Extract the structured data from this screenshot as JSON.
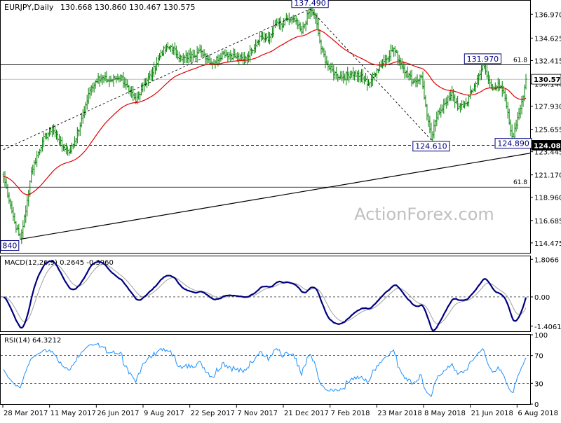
{
  "header": {
    "symbol": "EURJPY,Daily",
    "ohlc": "130.668 130.860 130.467 130.575"
  },
  "watermark": "ActionForex.com",
  "colors": {
    "bars": "#008000",
    "ma": "#e00000",
    "macd": "#000080",
    "signal": "#a0a0a0",
    "rsi": "#1e90ff",
    "level_line": "#000000",
    "label_border": "#000080",
    "label_text": "#000080",
    "pane_border": "#000000",
    "watermark": "#c0c0c0"
  },
  "chart_data": [
    {
      "type": "ohlc",
      "name": "price",
      "title": "EURJPY,Daily",
      "ylim": [
        113.5,
        138.3
      ],
      "y_ticks": [
        "136.970",
        "134.625",
        "132.415",
        "130.140",
        "127.930",
        "125.655",
        "123.445",
        "121.170",
        "118.960",
        "116.685",
        "114.475"
      ],
      "x_labels": [
        "28 Mar 2017",
        "11 May 2017",
        "26 Jun 2017",
        "9 Aug 2017",
        "22 Sep 2017",
        "7 Nov 2017",
        "21 Dec 2017",
        "7 Feb 2018",
        "23 Mar 2018",
        "8 May 2018",
        "21 Jun 2018",
        "6 Aug 2018"
      ],
      "current_price": "130.575",
      "anchors": [
        [
          0,
          121.0
        ],
        [
          5,
          118.2
        ],
        [
          8,
          116.5
        ],
        [
          12,
          114.84
        ],
        [
          16,
          117.6
        ],
        [
          20,
          121.5
        ],
        [
          28,
          124.5
        ],
        [
          35,
          125.8
        ],
        [
          42,
          124.0
        ],
        [
          48,
          123.5
        ],
        [
          55,
          126.0
        ],
        [
          62,
          129.5
        ],
        [
          68,
          130.8
        ],
        [
          76,
          130.4
        ],
        [
          84,
          130.9
        ],
        [
          90,
          129.4
        ],
        [
          95,
          128.4
        ],
        [
          100,
          130.0
        ],
        [
          107,
          131.2
        ],
        [
          113,
          133.2
        ],
        [
          120,
          133.8
        ],
        [
          128,
          132.5
        ],
        [
          135,
          133.0
        ],
        [
          142,
          133.3
        ],
        [
          150,
          132.1
        ],
        [
          158,
          133.2
        ],
        [
          166,
          132.8
        ],
        [
          172,
          132.5
        ],
        [
          178,
          133.4
        ],
        [
          184,
          134.8
        ],
        [
          190,
          134.4
        ],
        [
          196,
          136.2
        ],
        [
          200,
          135.8
        ],
        [
          204,
          136.5
        ],
        [
          209,
          136.3
        ],
        [
          214,
          135.2
        ],
        [
          220,
          137.49
        ],
        [
          224,
          136.6
        ],
        [
          228,
          133.6
        ],
        [
          233,
          131.8
        ],
        [
          239,
          131.0
        ],
        [
          244,
          130.8
        ],
        [
          250,
          131.2
        ],
        [
          256,
          130.9
        ],
        [
          262,
          130.1
        ],
        [
          268,
          131.5
        ],
        [
          274,
          132.5
        ],
        [
          280,
          133.6
        ],
        [
          284,
          132.4
        ],
        [
          289,
          131.3
        ],
        [
          294,
          130.3
        ],
        [
          300,
          130.8
        ],
        [
          304,
          127.0
        ],
        [
          307,
          124.61
        ],
        [
          312,
          127.4
        ],
        [
          318,
          128.3
        ],
        [
          322,
          129.3
        ],
        [
          326,
          127.7
        ],
        [
          332,
          128.2
        ],
        [
          338,
          129.9
        ],
        [
          344,
          131.97
        ],
        [
          348,
          130.5
        ],
        [
          351,
          129.6
        ],
        [
          355,
          130.2
        ],
        [
          360,
          128.7
        ],
        [
          364,
          125.5
        ],
        [
          366,
          124.89
        ],
        [
          369,
          126.8
        ],
        [
          372,
          128.4
        ],
        [
          375,
          130.575
        ]
      ],
      "ma_period": 55,
      "levels": [
        {
          "label": "61.8",
          "value": 132.0
        },
        {
          "label": "124.080",
          "value": 124.08
        },
        {
          "label": "61.8",
          "value": 119.96
        }
      ],
      "callouts": [
        {
          "label": "137.490",
          "index": 220,
          "value": 137.49
        },
        {
          "label": "131.970",
          "index": 344,
          "value": 131.97
        },
        {
          "label": "124.610",
          "index": 307,
          "value": 124.61
        },
        {
          "label": "124.890",
          "index": 366,
          "value": 124.89
        },
        {
          "label": "840",
          "index": 12,
          "value": 114.84
        }
      ],
      "trendlines": [
        {
          "from": [
            0,
            123.65
          ],
          "to": [
            220,
            137.49
          ]
        },
        {
          "from": [
            220,
            137.49
          ],
          "to": [
            307,
            124.61
          ]
        },
        {
          "from": [
            12,
            114.84
          ],
          "to": [
            375,
            123.3
          ]
        }
      ]
    },
    {
      "type": "line",
      "name": "MACD",
      "title": "MACD(12,26,9) 0.2645 -0.3960",
      "ylim": [
        -1.65,
        1.95
      ],
      "y_ticks": [
        "1.8066",
        "0.00",
        "-1.4061"
      ],
      "zero_level": 0.0,
      "series": [
        {
          "name": "MACD",
          "role": "macd"
        },
        {
          "name": "Signal",
          "role": "signal"
        }
      ]
    },
    {
      "type": "line",
      "name": "RSI",
      "title": "RSI(14) 64.3212",
      "ylim": [
        0,
        100
      ],
      "y_ticks": [
        "100",
        "70",
        "30",
        "0"
      ],
      "levels": [
        70,
        30
      ],
      "series": [
        {
          "name": "RSI",
          "role": "rsi"
        }
      ]
    }
  ]
}
